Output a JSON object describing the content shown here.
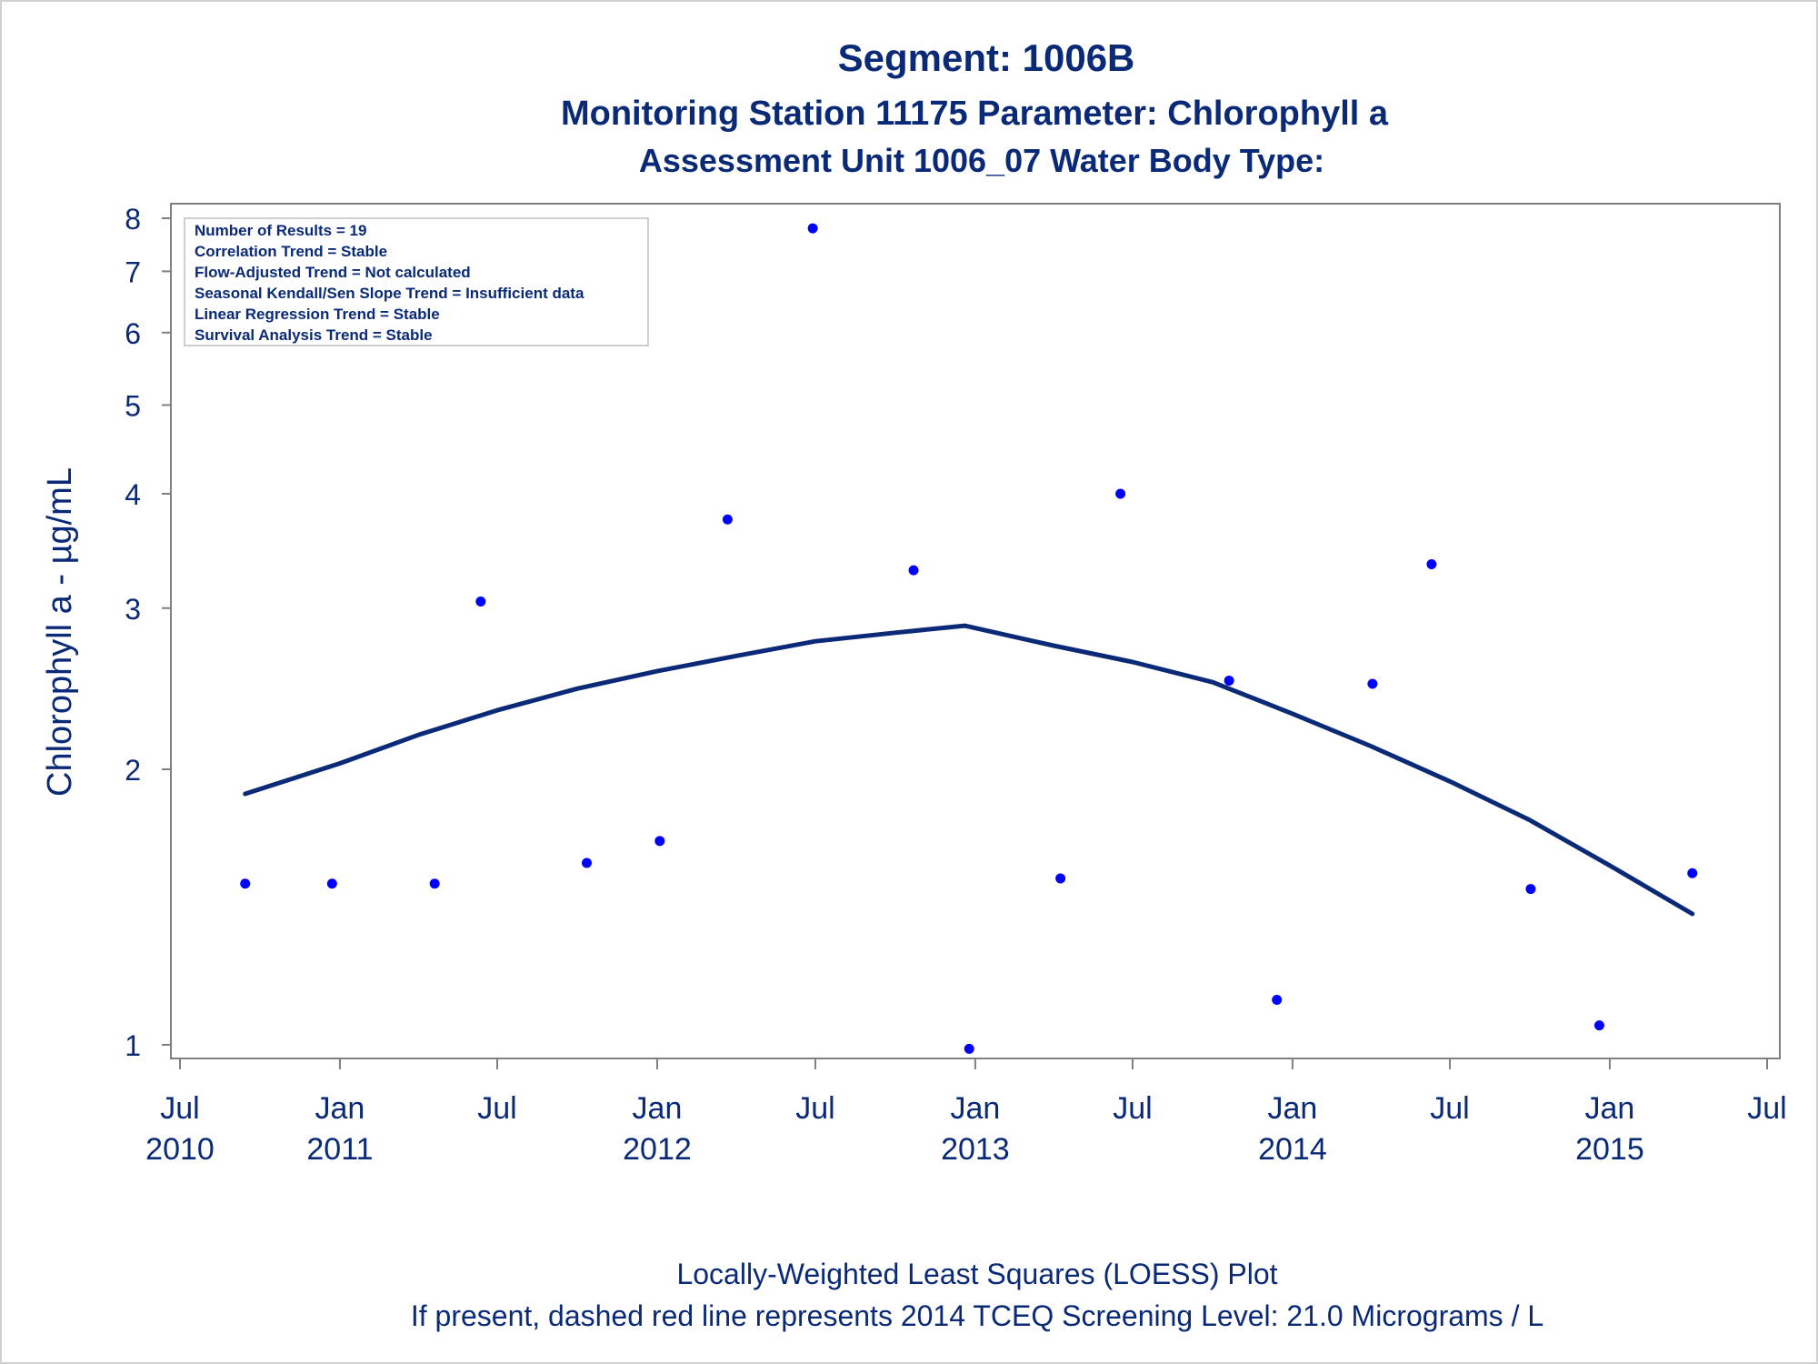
{
  "titles": {
    "line1": "Segment: 1006B",
    "line2": "Monitoring Station 11175 Parameter: Chlorophyll a",
    "line3": "Assessment Unit 1006_07   Water Body Type:"
  },
  "inset": {
    "lines": [
      "Number of Results = 19",
      "Correlation Trend = Stable",
      "Flow-Adjusted Trend = Not calculated",
      "Seasonal Kendall/Sen Slope Trend = Insufficient data",
      "Linear Regression Trend = Stable",
      "Survival Analysis Trend = Stable"
    ]
  },
  "footnotes": {
    "line1": "Locally-Weighted Least Squares (LOESS) Plot",
    "line2": "If present, dashed red line represents 2014 TCEQ Screening Level: 21.0 Micrograms / L"
  },
  "colors": {
    "text": "#0a2a78",
    "points": "#0000ff",
    "loess": "#0a2a78",
    "axis": "#808080"
  },
  "chart_data": {
    "type": "scatter",
    "ylabel": "Chlorophyll a -  µg/mL",
    "yscale": "log",
    "ylim": [
      1,
      8
    ],
    "yticks": [
      1,
      2,
      3,
      4,
      5,
      6,
      7,
      8
    ],
    "xlim": [
      "2010-07-01",
      "2015-07-01"
    ],
    "xticks": [
      {
        "date": "2010-07-01",
        "month": "Jul",
        "year": "2010"
      },
      {
        "date": "2011-01-01",
        "month": "Jan",
        "year": "2011"
      },
      {
        "date": "2011-07-01",
        "month": "Jul",
        "year": ""
      },
      {
        "date": "2012-01-01",
        "month": "Jan",
        "year": "2012"
      },
      {
        "date": "2012-07-01",
        "month": "Jul",
        "year": ""
      },
      {
        "date": "2013-01-01",
        "month": "Jan",
        "year": "2013"
      },
      {
        "date": "2013-07-01",
        "month": "Jul",
        "year": ""
      },
      {
        "date": "2014-01-01",
        "month": "Jan",
        "year": "2014"
      },
      {
        "date": "2014-07-01",
        "month": "Jul",
        "year": ""
      },
      {
        "date": "2015-01-01",
        "month": "Jan",
        "year": "2015"
      },
      {
        "date": "2015-07-01",
        "month": "Jul",
        "year": ""
      }
    ],
    "series": [
      {
        "type": "scatter",
        "points": [
          {
            "x": "2010-09-14",
            "y": 1.5
          },
          {
            "x": "2010-12-23",
            "y": 1.5
          },
          {
            "x": "2011-04-20",
            "y": 1.5
          },
          {
            "x": "2011-06-12",
            "y": 3.05
          },
          {
            "x": "2011-10-12",
            "y": 1.58
          },
          {
            "x": "2012-01-04",
            "y": 1.67
          },
          {
            "x": "2012-03-22",
            "y": 3.75
          },
          {
            "x": "2012-06-28",
            "y": 7.8
          },
          {
            "x": "2012-10-22",
            "y": 3.3
          },
          {
            "x": "2012-12-25",
            "y": 0.99
          },
          {
            "x": "2013-04-09",
            "y": 1.52
          },
          {
            "x": "2013-06-17",
            "y": 4.0
          },
          {
            "x": "2013-10-20",
            "y": 2.5
          },
          {
            "x": "2013-12-14",
            "y": 1.12
          },
          {
            "x": "2014-04-03",
            "y": 2.48
          },
          {
            "x": "2014-06-10",
            "y": 3.35
          },
          {
            "x": "2014-10-02",
            "y": 1.48
          },
          {
            "x": "2014-12-20",
            "y": 1.05
          },
          {
            "x": "2015-04-06",
            "y": 1.54
          }
        ]
      },
      {
        "type": "line",
        "points": [
          {
            "x": "2010-09-14",
            "y": 1.88
          },
          {
            "x": "2011-01-01",
            "y": 2.03
          },
          {
            "x": "2011-04-01",
            "y": 2.18
          },
          {
            "x": "2011-07-01",
            "y": 2.32
          },
          {
            "x": "2011-10-01",
            "y": 2.45
          },
          {
            "x": "2012-01-01",
            "y": 2.56
          },
          {
            "x": "2012-04-01",
            "y": 2.66
          },
          {
            "x": "2012-07-01",
            "y": 2.76
          },
          {
            "x": "2012-10-01",
            "y": 2.82
          },
          {
            "x": "2012-12-20",
            "y": 2.87
          },
          {
            "x": "2013-04-01",
            "y": 2.73
          },
          {
            "x": "2013-07-01",
            "y": 2.62
          },
          {
            "x": "2013-10-01",
            "y": 2.49
          },
          {
            "x": "2014-01-01",
            "y": 2.3
          },
          {
            "x": "2014-04-01",
            "y": 2.12
          },
          {
            "x": "2014-07-01",
            "y": 1.94
          },
          {
            "x": "2014-10-01",
            "y": 1.76
          },
          {
            "x": "2015-01-01",
            "y": 1.57
          },
          {
            "x": "2015-04-06",
            "y": 1.39
          }
        ]
      }
    ]
  }
}
